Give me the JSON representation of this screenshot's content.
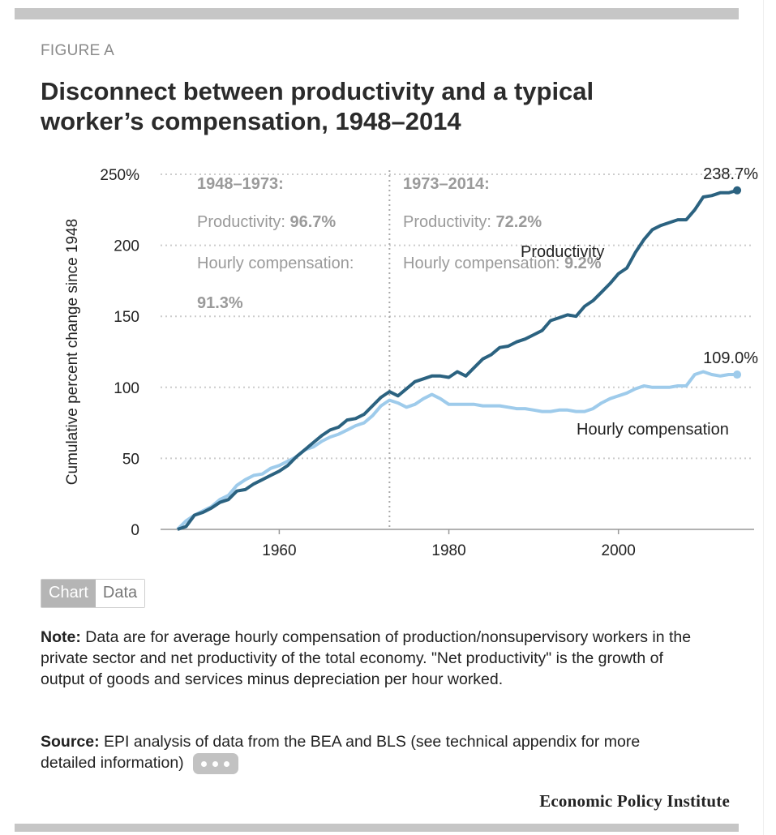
{
  "header": {
    "figure_label": "FIGURE A",
    "title": "Disconnect between productivity and a typical worker’s compensation, 1948–2014"
  },
  "tabs": [
    {
      "label": "Chart",
      "active": true
    },
    {
      "label": "Data",
      "active": false
    }
  ],
  "note": {
    "label": "Note:",
    "text": "Data are for average hourly compensation of production/nonsupervisory workers in the private sector and net productivity of the total economy. \"Net productivity\" is the growth of output of goods and services minus depreciation per hour worked."
  },
  "source": {
    "label": "Source:",
    "text": "EPI analysis of data from the BEA and BLS (see technical appendix for more detailed information)",
    "more_icon": "ellipsis-icon"
  },
  "footer": {
    "brand": "Economic Policy Institute"
  },
  "colors": {
    "productivity": "#2b6280",
    "compensation": "#9ecbeb",
    "annotation": "#9a9a9a",
    "grid": "#cccccc",
    "bars": "#c6c6c6"
  },
  "chart_data": {
    "type": "line",
    "ylabel": "Cumulative percent change since 1948",
    "xlabel": "",
    "ylim": [
      0,
      250
    ],
    "xlim": [
      1946,
      2016
    ],
    "yticks": [
      0,
      50,
      100,
      150,
      200,
      250
    ],
    "ytick_labels": [
      "0",
      "50",
      "100",
      "150",
      "200",
      "250%"
    ],
    "xticks": [
      1960,
      1980,
      2000
    ],
    "xtick_labels": [
      "1960",
      "1980",
      "2000"
    ],
    "grid": true,
    "divider_year": 1973,
    "periods": [
      {
        "heading": "1948–1973:",
        "productivity_label": "Productivity: ",
        "productivity_value": "96.7%",
        "compensation_label": "Hourly compensation:",
        "compensation_value": "91.3%"
      },
      {
        "heading": "1973–2014:",
        "productivity_label": "Productivity: ",
        "productivity_value": "72.2%",
        "compensation_label": "Hourly compensation: ",
        "compensation_value": "9.2%"
      }
    ],
    "end_labels": {
      "productivity": "238.7%",
      "compensation": "109.0%"
    },
    "series": [
      {
        "name": "Productivity",
        "x": [
          1948,
          1949,
          1950,
          1951,
          1952,
          1953,
          1954,
          1955,
          1956,
          1957,
          1958,
          1959,
          1960,
          1961,
          1962,
          1963,
          1964,
          1965,
          1966,
          1967,
          1968,
          1969,
          1970,
          1971,
          1972,
          1973,
          1974,
          1975,
          1976,
          1977,
          1978,
          1979,
          1980,
          1981,
          1982,
          1983,
          1984,
          1985,
          1986,
          1987,
          1988,
          1989,
          1990,
          1991,
          1992,
          1993,
          1994,
          1995,
          1996,
          1997,
          1998,
          1999,
          2000,
          2001,
          2002,
          2003,
          2004,
          2005,
          2006,
          2007,
          2008,
          2009,
          2010,
          2011,
          2012,
          2013,
          2014
        ],
        "values": [
          0,
          2,
          10,
          12,
          15,
          19,
          21,
          27,
          28,
          32,
          35,
          38,
          41,
          45,
          51,
          56,
          61,
          66,
          70,
          72,
          77,
          78,
          81,
          87,
          93,
          97,
          94,
          99,
          104,
          106,
          108,
          108,
          107,
          111,
          108,
          114,
          120,
          123,
          128,
          129,
          132,
          134,
          137,
          140,
          147,
          149,
          151,
          150,
          157,
          161,
          167,
          173,
          180,
          184,
          195,
          204,
          211,
          214,
          216,
          218,
          218,
          225,
          234,
          235,
          237,
          237,
          238.7
        ]
      },
      {
        "name": "Hourly compensation",
        "x": [
          1948,
          1949,
          1950,
          1951,
          1952,
          1953,
          1954,
          1955,
          1956,
          1957,
          1958,
          1959,
          1960,
          1961,
          1962,
          1963,
          1964,
          1965,
          1966,
          1967,
          1968,
          1969,
          1970,
          1971,
          1972,
          1973,
          1974,
          1975,
          1976,
          1977,
          1978,
          1979,
          1980,
          1981,
          1982,
          1983,
          1984,
          1985,
          1986,
          1987,
          1988,
          1989,
          1990,
          1991,
          1992,
          1993,
          1994,
          1995,
          1996,
          1997,
          1998,
          1999,
          2000,
          2001,
          2002,
          2003,
          2004,
          2005,
          2006,
          2007,
          2008,
          2009,
          2010,
          2011,
          2012,
          2013,
          2014
        ],
        "values": [
          0,
          6,
          10,
          13,
          16,
          21,
          24,
          31,
          35,
          38,
          39,
          43,
          45,
          48,
          51,
          56,
          58,
          62,
          65,
          67,
          70,
          73,
          75,
          80,
          87,
          91,
          89,
          86,
          88,
          92,
          95,
          92,
          88,
          88,
          88,
          88,
          87,
          87,
          87,
          86,
          85,
          85,
          84,
          83,
          83,
          84,
          84,
          83,
          83,
          85,
          89,
          92,
          94,
          96,
          99,
          101,
          100,
          100,
          100,
          101,
          101,
          109,
          111,
          109,
          108,
          109,
          109.0
        ]
      }
    ]
  }
}
